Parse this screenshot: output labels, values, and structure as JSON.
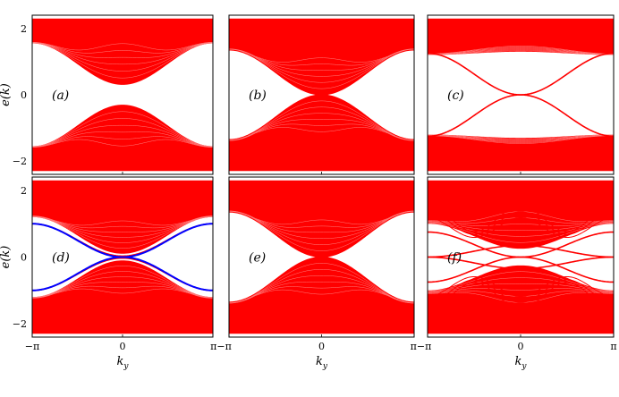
{
  "figure": {
    "ylabel": "e(k)",
    "xlabel": "k",
    "xlabel_subscript": "y",
    "ytick_labels": [
      "2",
      "0",
      "−2"
    ],
    "xtick_labels": [
      "−π",
      "0",
      "π"
    ],
    "xtick_labels_joined": [
      "π−π",
      "0",
      "π−π"
    ],
    "colors": {
      "bands": "#ff0000",
      "highlight": "#0000ff",
      "frame": "#000000"
    }
  },
  "chart_data": [
    {
      "type": "line",
      "panel_label": "(a)",
      "xlim": [
        -3.1416,
        3.1416
      ],
      "ylim": [
        -2.4,
        2.4
      ],
      "bands": {
        "outer": 2.3,
        "edge_at_0": 0.3,
        "edge_at_pi": 1.55,
        "inner_top": 1.75,
        "gap_lines": 0
      },
      "edge_states": [],
      "highlight_states": []
    },
    {
      "type": "line",
      "panel_label": "(b)",
      "xlim": [
        -3.1416,
        3.1416
      ],
      "ylim": [
        -2.4,
        2.4
      ],
      "bands": {
        "outer": 2.3,
        "edge_at_0": 0.0,
        "edge_at_pi": 1.35,
        "inner_top": 1.3,
        "gap_lines": 0
      },
      "edge_states": [
        {
          "y_at_0": 0.0,
          "y_at_pi": 1.35,
          "width": 1.0
        }
      ],
      "highlight_states": []
    },
    {
      "type": "line",
      "panel_label": "(c)",
      "xlim": [
        -3.1416,
        3.1416
      ],
      "ylim": [
        -2.4,
        2.4
      ],
      "bands": {
        "outer": 2.3,
        "edge_at_0": 1.3,
        "edge_at_pi": 1.2,
        "inner_top": 1.2,
        "gap_lines": 0
      },
      "edge_states": [
        {
          "y_at_0": 0.0,
          "y_at_pi": 1.25,
          "width": 1.6
        }
      ],
      "highlight_states": []
    },
    {
      "type": "line",
      "panel_label": "(d)",
      "xlim": [
        -3.1416,
        3.1416
      ],
      "ylim": [
        -2.4,
        2.4
      ],
      "bands": {
        "outer": 2.3,
        "edge_at_0": 0.1,
        "edge_at_pi": 1.2,
        "inner_top": 1.25,
        "gap_lines": 0
      },
      "edge_states": [
        {
          "y_at_0": 0.03,
          "y_at_pi": 1.0,
          "width": 1.6
        }
      ],
      "highlight_states": [
        {
          "y_at_0": 0.0,
          "y_at_pi": 1.0,
          "width": 2.0
        }
      ]
    },
    {
      "type": "line",
      "panel_label": "(e)",
      "xlim": [
        -3.1416,
        3.1416
      ],
      "ylim": [
        -2.4,
        2.4
      ],
      "bands": {
        "outer": 2.3,
        "edge_at_0": 0.0,
        "edge_at_pi": 1.35,
        "inner_top": 1.3,
        "gap_lines": 0
      },
      "edge_states": [
        {
          "y_at_0": 0.0,
          "y_at_pi": 1.35,
          "width": 1.0
        }
      ],
      "highlight_states": []
    },
    {
      "type": "line",
      "panel_label": "(f)",
      "xlim": [
        -3.1416,
        3.1416
      ],
      "ylim": [
        -2.4,
        2.4
      ],
      "bands": {
        "outer": 2.3,
        "edge_at_0": 0.25,
        "edge_at_pi": 1.0,
        "inner_top": 1.55,
        "gap_lines": 3
      },
      "edge_states": [
        {
          "y_at_0": 0.35,
          "y_at_pi": 0.0,
          "width": 1.6
        },
        {
          "y_at_0": 0.0,
          "y_at_pi": 0.75,
          "width": 1.6
        }
      ],
      "highlight_states": []
    }
  ]
}
